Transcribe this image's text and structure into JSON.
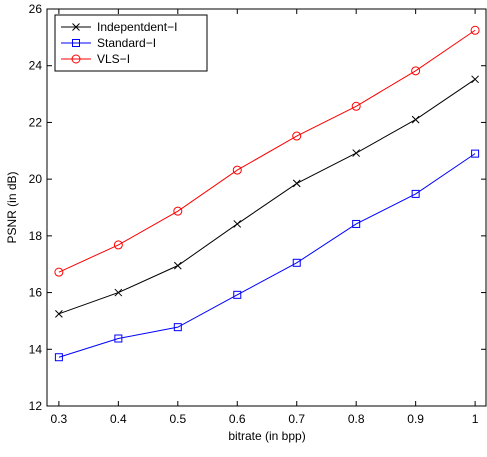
{
  "chart_data": {
    "type": "line",
    "title": "",
    "xlabel": "bitrate (in bpp)",
    "ylabel": "PSNR (in dB)",
    "xlim": [
      0.28,
      1.02
    ],
    "ylim": [
      12,
      26
    ],
    "xticks": [
      0.3,
      0.4,
      0.5,
      0.6,
      0.7,
      0.8,
      0.9,
      1.0
    ],
    "xtick_labels": [
      "0.3",
      "0.4",
      "0.5",
      "0.6",
      "0.7",
      "0.8",
      "0.9",
      "1"
    ],
    "yticks": [
      12,
      14,
      16,
      18,
      20,
      22,
      24,
      26
    ],
    "ytick_labels": [
      "12",
      "14",
      "16",
      "18",
      "20",
      "22",
      "24",
      "26"
    ],
    "grid": false,
    "legend_position": "top-left",
    "x": [
      0.3,
      0.4,
      0.5,
      0.6,
      0.7,
      0.8,
      0.9,
      1.0
    ],
    "series": [
      {
        "name": "Indepentdent−I",
        "color": "#000000",
        "marker": "x",
        "values": [
          15.25,
          16.0,
          16.95,
          18.42,
          19.85,
          20.92,
          22.1,
          23.52
        ]
      },
      {
        "name": "Standard−I",
        "color": "#0000ff",
        "marker": "square",
        "values": [
          13.72,
          14.38,
          14.78,
          15.92,
          17.05,
          18.42,
          19.48,
          20.9
        ]
      },
      {
        "name": "VLS−I",
        "color": "#ff0000",
        "marker": "circle",
        "values": [
          16.72,
          17.68,
          18.87,
          20.32,
          21.52,
          22.57,
          23.82,
          25.25
        ]
      }
    ]
  }
}
